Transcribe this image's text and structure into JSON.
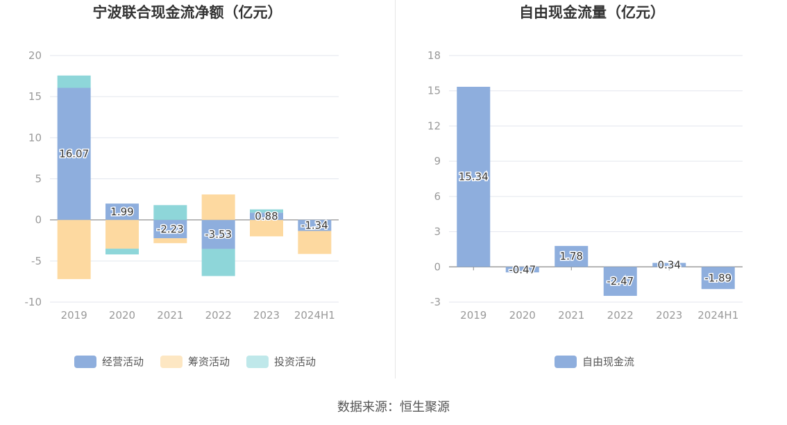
{
  "source_note": "数据来源：恒生聚源",
  "chart_data": [
    {
      "type": "bar",
      "stacked": true,
      "title": "宁波联合现金流净额（亿元）",
      "categories": [
        "2019",
        "2020",
        "2021",
        "2022",
        "2023",
        "2024H1"
      ],
      "ylim": [
        -10,
        20
      ],
      "yticks": [
        -10,
        -5,
        0,
        5,
        10,
        15,
        20
      ],
      "grid": true,
      "legend_position": "bottom",
      "series": [
        {
          "name": "经营活动",
          "color": "#8eaedd",
          "values": [
            16.07,
            1.99,
            -2.23,
            -3.53,
            0.88,
            -1.34
          ],
          "labeled": true
        },
        {
          "name": "筹资活动",
          "color": "#fdd9a0",
          "values": [
            -7.2,
            -3.5,
            -0.6,
            3.1,
            -2.0,
            -2.8
          ],
          "labeled": false
        },
        {
          "name": "投资活动",
          "color": "#8ed6d9",
          "values": [
            1.5,
            -0.7,
            1.8,
            -3.3,
            0.4,
            0.0
          ],
          "labeled": false
        }
      ],
      "legend_colors": [
        "#8eaedd",
        "#fde7c3",
        "#bfe8ea"
      ],
      "data_labels": [
        "16.07",
        "1.99",
        "-2.23",
        "-3.53",
        "0.88",
        "-1.34"
      ]
    },
    {
      "type": "bar",
      "title": "自由现金流量（亿元）",
      "categories": [
        "2019",
        "2020",
        "2021",
        "2022",
        "2023",
        "2024H1"
      ],
      "ylim": [
        -3,
        18
      ],
      "yticks": [
        -3,
        0,
        3,
        6,
        9,
        12,
        15,
        18
      ],
      "grid": true,
      "legend_position": "bottom",
      "series": [
        {
          "name": "自由现金流",
          "color": "#8eaedd",
          "values": [
            15.34,
            -0.47,
            1.78,
            -2.47,
            0.34,
            -1.89
          ]
        }
      ],
      "data_labels": [
        "15.34",
        "-0.47",
        "1.78",
        "-2.47",
        "0.34",
        "-1.89"
      ]
    }
  ]
}
